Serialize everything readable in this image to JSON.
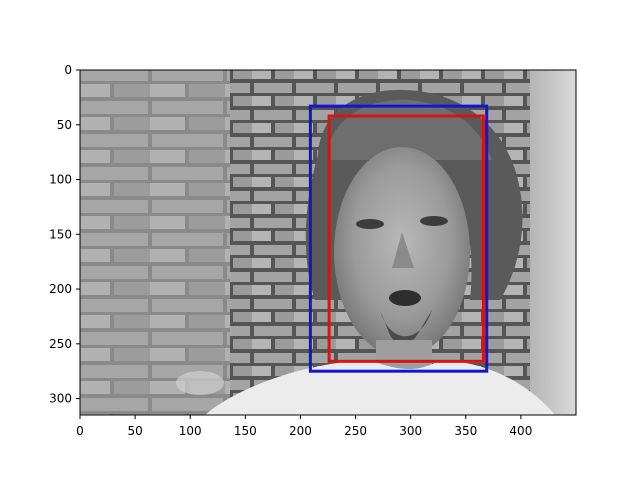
{
  "image": {
    "description_icon": "grayscale-photo-icon",
    "x_extent": [
      0,
      450
    ],
    "y_extent": [
      315,
      0
    ]
  },
  "colors": {
    "box_blue": "#1414d6",
    "box_red": "#d61414",
    "axis": "#000000"
  },
  "chart_data": {
    "type": "image",
    "xlim": [
      0,
      450
    ],
    "ylim": [
      315,
      0
    ],
    "x_ticks": [
      0,
      50,
      100,
      150,
      200,
      250,
      300,
      350,
      400
    ],
    "y_ticks": [
      0,
      50,
      100,
      150,
      200,
      250,
      300
    ],
    "boxes": [
      {
        "color": "blue",
        "x0": 209,
        "y0": 33,
        "x1": 369,
        "y1": 275
      },
      {
        "color": "red",
        "x0": 226,
        "y0": 42,
        "x1": 366,
        "y1": 266
      }
    ]
  }
}
